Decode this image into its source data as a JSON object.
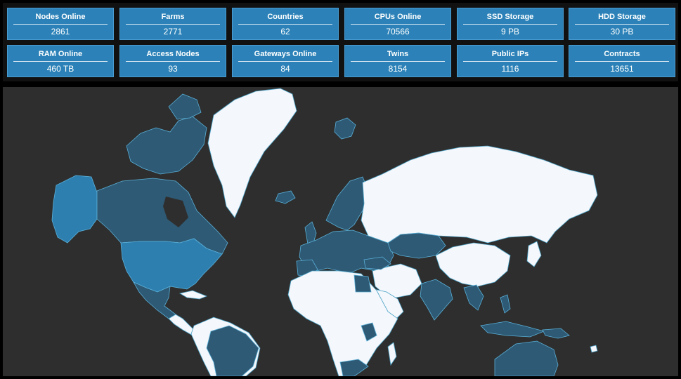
{
  "stats": [
    {
      "label": "Nodes Online",
      "value": "2861"
    },
    {
      "label": "Farms",
      "value": "2771"
    },
    {
      "label": "Countries",
      "value": "62"
    },
    {
      "label": "CPUs Online",
      "value": "70566"
    },
    {
      "label": "SSD Storage",
      "value": "9 PB"
    },
    {
      "label": "HDD Storage",
      "value": "30 PB"
    },
    {
      "label": "RAM Online",
      "value": "460 TB"
    },
    {
      "label": "Access Nodes",
      "value": "93"
    },
    {
      "label": "Gateways Online",
      "value": "84"
    },
    {
      "label": "Twins",
      "value": "8154"
    },
    {
      "label": "Public IPs",
      "value": "1116"
    },
    {
      "label": "Contracts",
      "value": "13651"
    }
  ],
  "colors": {
    "card": "#2c82b8",
    "map_background": "#2e2e2e",
    "country_active": "#2e5a75",
    "country_active_highlight": "#2d7fb0",
    "country_inactive": "#f4f7fb",
    "country_border": "#4aa3c8"
  }
}
